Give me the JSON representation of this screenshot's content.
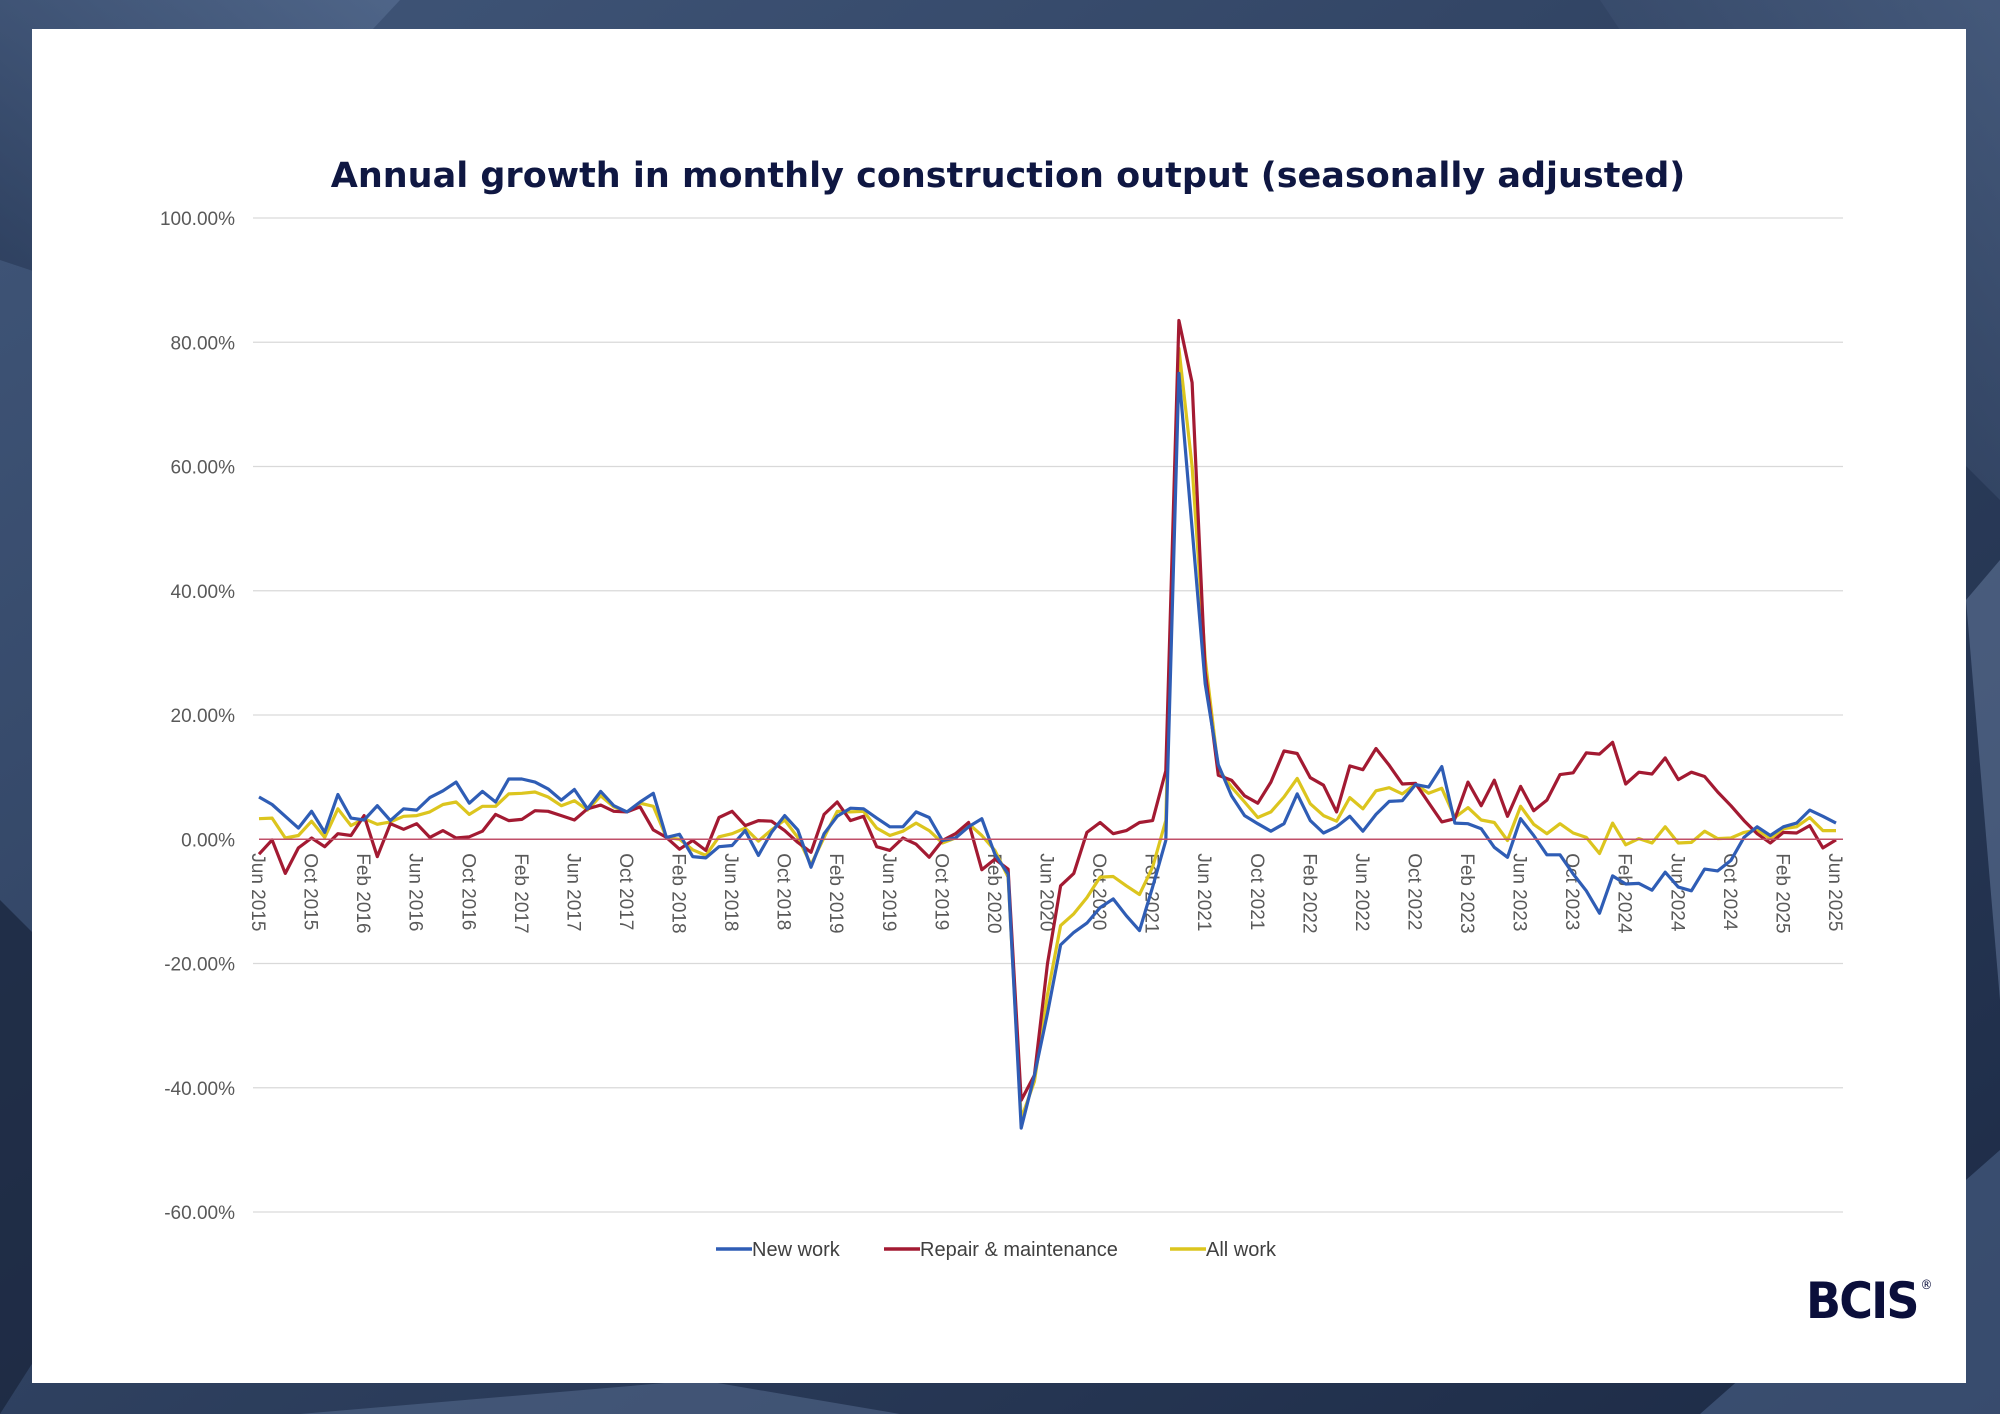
{
  "brand": {
    "logo_text": "BCIS",
    "registered_mark": "®"
  },
  "colors": {
    "new_work": "#2f5db5",
    "repair_maintenance": "#a31a32",
    "all_work": "#dcc51e",
    "zero_line": "#c0506a",
    "grid": "#d9d9d9",
    "title": "#0f1742"
  },
  "chart_data": {
    "type": "line",
    "title": "Annual growth in monthly construction output (seasonally adjusted)",
    "xlabel": "",
    "ylabel": "",
    "ylim": [
      -60,
      100
    ],
    "y_ticks": [
      100,
      80,
      60,
      40,
      20,
      0,
      -20,
      -40,
      -60
    ],
    "y_tick_labels": [
      "100.00%",
      "80.00%",
      "60.00%",
      "40.00%",
      "20.00%",
      "0.00%",
      "-20.00%",
      "-40.00%",
      "-60.00%"
    ],
    "grid": "horizontal",
    "legend": "bottom",
    "x": [
      "Jun 2015",
      "Jul 2015",
      "Aug 2015",
      "Sep 2015",
      "Oct 2015",
      "Nov 2015",
      "Dec 2015",
      "Jan 2016",
      "Feb 2016",
      "Mar 2016",
      "Apr 2016",
      "May 2016",
      "Jun 2016",
      "Jul 2016",
      "Aug 2016",
      "Sep 2016",
      "Oct 2016",
      "Nov 2016",
      "Dec 2016",
      "Jan 2017",
      "Feb 2017",
      "Mar 2017",
      "Apr 2017",
      "May 2017",
      "Jun 2017",
      "Jul 2017",
      "Aug 2017",
      "Sep 2017",
      "Oct 2017",
      "Nov 2017",
      "Dec 2017",
      "Jan 2018",
      "Feb 2018",
      "Mar 2018",
      "Apr 2018",
      "May 2018",
      "Jun 2018",
      "Jul 2018",
      "Aug 2018",
      "Sep 2018",
      "Oct 2018",
      "Nov 2018",
      "Dec 2018",
      "Jan 2019",
      "Feb 2019",
      "Mar 2019",
      "Apr 2019",
      "May 2019",
      "Jun 2019",
      "Jul 2019",
      "Aug 2019",
      "Sep 2019",
      "Oct 2019",
      "Nov 2019",
      "Dec 2019",
      "Jan 2020",
      "Feb 2020",
      "Mar 2020",
      "Apr 2020",
      "May 2020",
      "Jun 2020",
      "Jul 2020",
      "Aug 2020",
      "Sep 2020",
      "Oct 2020",
      "Nov 2020",
      "Dec 2020",
      "Jan 2021",
      "Feb 2021",
      "Mar 2021",
      "Apr 2021",
      "May 2021",
      "Jun 2021",
      "Jul 2021",
      "Aug 2021",
      "Sep 2021",
      "Oct 2021",
      "Nov 2021",
      "Dec 2021",
      "Jan 2022",
      "Feb 2022",
      "Mar 2022",
      "Apr 2022",
      "May 2022",
      "Jun 2022",
      "Jul 2022",
      "Aug 2022",
      "Sep 2022",
      "Oct 2022",
      "Nov 2022",
      "Dec 2022",
      "Jan 2023",
      "Feb 2023",
      "Mar 2023",
      "Apr 2023",
      "May 2023",
      "Jun 2023",
      "Jul 2023",
      "Aug 2023",
      "Sep 2023",
      "Oct 2023",
      "Nov 2023",
      "Dec 2023",
      "Jan 2024",
      "Feb 2024",
      "Mar 2024",
      "Apr 2024",
      "May 2024",
      "Jun 2024",
      "Jul 2024",
      "Aug 2024",
      "Sep 2024",
      "Oct 2024",
      "Nov 2024",
      "Dec 2024",
      "Jan 2025",
      "Feb 2025",
      "Mar 2025",
      "Apr 2025",
      "May 2025",
      "Jun 2025"
    ],
    "x_tick_labels": [
      "Jun 2015",
      "Oct 2015",
      "Feb 2016",
      "Jun 2016",
      "Oct 2016",
      "Feb 2017",
      "Jun 2017",
      "Oct 2017",
      "Feb 2018",
      "Jun 2018",
      "Oct 2018",
      "Feb 2019",
      "Jun 2019",
      "Oct 2019",
      "Feb 2020",
      "Jun 2020",
      "Oct 2020",
      "Feb 2021",
      "Jun 2021",
      "Oct 2021",
      "Feb 2022",
      "Jun 2022",
      "Oct 2022",
      "Feb 2023",
      "Jun 2023",
      "Oct 2023",
      "Feb 2024",
      "Jun 2024",
      "Oct 2024",
      "Feb 2025",
      "Jun 2025"
    ],
    "series": [
      {
        "name": "New work",
        "color": "#2f5db5",
        "values": [
          6.8,
          5.6,
          3.7,
          1.8,
          4.5,
          1.1,
          7.2,
          3.4,
          3.1,
          5.4,
          3,
          4.9,
          4.7,
          6.7,
          7.8,
          9.2,
          5.8,
          7.7,
          6,
          9.7,
          9.7,
          9.2,
          8.1,
          6.3,
          8,
          4.9,
          7.7,
          5.4,
          4.4,
          6,
          7.4,
          0.3,
          0.8,
          -2.8,
          -3,
          -1.2,
          -1,
          1.4,
          -2.6,
          1.1,
          3.8,
          1.5,
          -4.5,
          0.9,
          3.7,
          5,
          4.9,
          3.4,
          2,
          2,
          4.4,
          3.5,
          -0.2,
          0.2,
          2,
          3.3,
          -2.4,
          -5.6,
          -46.5,
          -38,
          -28,
          -17,
          -15,
          -13.5,
          -11,
          -9.6,
          -12.3,
          -14.7,
          -7.7,
          -0.2,
          75,
          50,
          25,
          12,
          7,
          3.8,
          2.5,
          1.3,
          2.5,
          7.3,
          3,
          1,
          2,
          3.7,
          1.3,
          4,
          6.1,
          6.2,
          8.8,
          8.4,
          11.7,
          2.6,
          2.5,
          1.7,
          -1.3,
          -2.9,
          3.3,
          0.6,
          -2.5,
          -2.5,
          -5.6,
          -8.3,
          -11.9,
          -5.9,
          -7.2,
          -7.1,
          -8.2,
          -5.3,
          -7.7,
          -8.3,
          -4.8,
          -5.1,
          -3.4,
          0.3,
          2,
          0.6,
          2,
          2.6,
          4.7,
          3.7,
          2.6
        ]
      },
      {
        "name": "Repair & maintenance",
        "color": "#a31a32",
        "values": [
          -2.4,
          -0.1,
          -5.5,
          -1.4,
          0.2,
          -1.2,
          0.9,
          0.6,
          3.8,
          -2.8,
          2.5,
          1.6,
          2.5,
          0.3,
          1.4,
          0.2,
          0.4,
          1.3,
          4,
          3,
          3.2,
          4.6,
          4.5,
          3.8,
          3.1,
          4.9,
          5.5,
          4.5,
          4.4,
          5.2,
          1.5,
          0.3,
          -1.6,
          -0.2,
          -1.8,
          3.5,
          4.5,
          2.2,
          3,
          2.9,
          1.4,
          -0.5,
          -2.1,
          4,
          6,
          3,
          3.7,
          -1.2,
          -1.8,
          0.2,
          -0.8,
          -2.9,
          -0.2,
          0.9,
          2.7,
          -4.9,
          -3.2,
          -4.8,
          -42,
          -38,
          -20,
          -7.5,
          -5.5,
          1.1,
          2.7,
          0.9,
          1.4,
          2.7,
          3,
          11,
          83.5,
          73.5,
          27,
          10.3,
          9.5,
          7,
          5.8,
          9.2,
          14.2,
          13.8,
          9.9,
          8.7,
          4.4,
          11.8,
          11.2,
          14.6,
          11.9,
          8.9,
          9,
          5.9,
          2.8,
          3.3,
          9.2,
          5.4,
          9.5,
          3.7,
          8.5,
          4.6,
          6.3,
          10.4,
          10.7,
          13.9,
          13.7,
          15.6,
          8.9,
          10.8,
          10.5,
          13.1,
          9.6,
          10.8,
          10.1,
          7.6,
          5.4,
          3,
          0.9,
          -0.6,
          1.1,
          1,
          2.2,
          -1.4,
          -0.1
        ]
      },
      {
        "name": "All work",
        "color": "#dcc51e",
        "values": [
          3.3,
          3.4,
          0.2,
          0.6,
          2.9,
          0.3,
          4.9,
          2.2,
          3.3,
          2.4,
          2.8,
          3.7,
          3.8,
          4.4,
          5.6,
          6,
          4,
          5.3,
          5.3,
          7.3,
          7.4,
          7.6,
          6.8,
          5.4,
          6.2,
          4.7,
          7,
          5.2,
          4.4,
          5.8,
          5.3,
          0.3,
          0,
          -1.7,
          -2.6,
          0.4,
          0.9,
          1.8,
          -0.3,
          1.5,
          3.1,
          0.3,
          -4.1,
          0.3,
          4.5,
          4.4,
          4.5,
          1.8,
          0.6,
          1.3,
          2.6,
          1.4,
          -0.6,
          0.2,
          2.5,
          0.6,
          -1.8,
          -6.1,
          -45,
          -39,
          -25,
          -13.9,
          -12,
          -9.4,
          -6.1,
          -6,
          -7.5,
          -8.9,
          -4.5,
          3,
          79,
          60,
          29,
          11.3,
          8.4,
          6,
          3.5,
          4.4,
          6.8,
          9.8,
          5.7,
          3.8,
          2.9,
          6.7,
          4.9,
          7.8,
          8.3,
          7.3,
          8.9,
          7.4,
          8.2,
          3.5,
          5.1,
          3.1,
          2.7,
          -0.2,
          5.3,
          2.4,
          0.9,
          2.5,
          1,
          0.3,
          -2.3,
          2.6,
          -0.9,
          0.1,
          -0.6,
          2,
          -0.6,
          -0.5,
          1.3,
          0.1,
          0.2,
          1.1,
          1.5,
          0.1,
          1.7,
          2,
          3.5,
          1.4,
          1.4
        ]
      }
    ]
  }
}
